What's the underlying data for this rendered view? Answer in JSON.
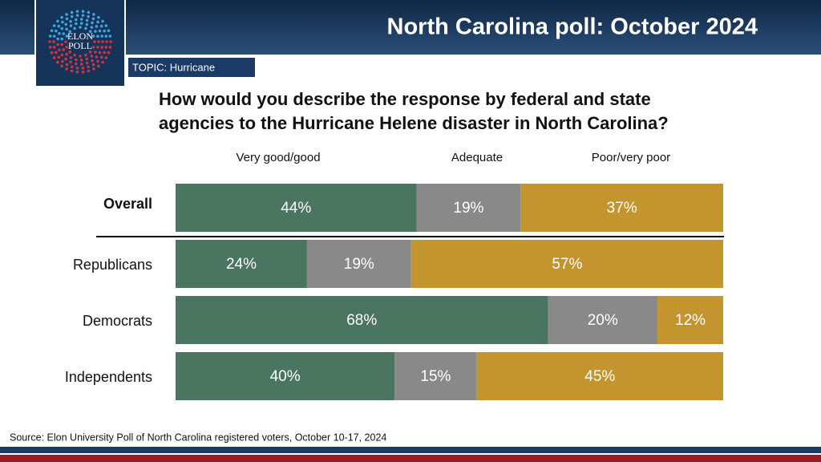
{
  "header": {
    "title": "North Carolina poll: October 2024",
    "logo": [
      "ELON",
      "POLL"
    ],
    "topic": "TOPIC: Hurricane"
  },
  "chart_data": {
    "type": "stacked-bar",
    "orientation": "horizontal",
    "title": [
      "How would you describe the response by federal and state",
      "agencies to the Hurricane Helene disaster in North Carolina?"
    ],
    "categories": [
      "Overall",
      "Republicans",
      "Democrats",
      "Independents"
    ],
    "xlim": [
      0,
      100
    ],
    "series": [
      {
        "name": "Very good/good",
        "color": "#4a7561",
        "values": [
          44,
          24,
          68,
          40
        ],
        "value_labels": [
          "44%",
          "24%",
          "68%",
          "40%"
        ]
      },
      {
        "name": "Adequate",
        "color": "#898989",
        "values": [
          19,
          19,
          20,
          15
        ],
        "value_labels": [
          "19%",
          "19%",
          "20%",
          "15%"
        ]
      },
      {
        "name": "Poor/very poor",
        "color": "#c4952f",
        "values": [
          37,
          57,
          12,
          45
        ],
        "value_labels": [
          "37%",
          "57%",
          "12%",
          "45%"
        ]
      }
    ],
    "source": "Source: Elon University Poll of North Carolina registered voters, October 10-17, 2024"
  }
}
